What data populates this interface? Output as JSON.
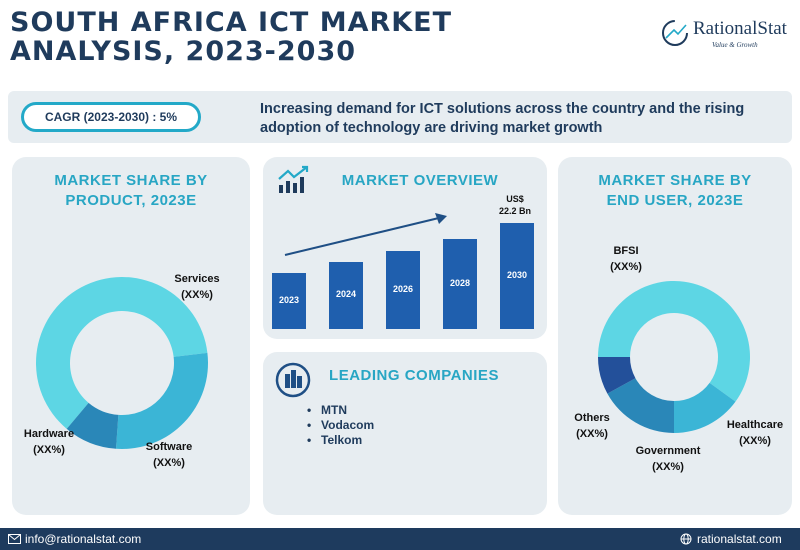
{
  "title": {
    "line1": "SOUTH AFRICA ICT MARKET",
    "line2": "ANALYSIS, 2023-2030"
  },
  "logo": {
    "name": "RationalStat",
    "tagline": "Value & Growth"
  },
  "banner": {
    "cagr": "CAGR (2023-2030) : 5%",
    "text": "Increasing demand for ICT solutions across the country and the rising adoption of technology are driving market growth"
  },
  "product_panel": {
    "title_line1": "MARKET SHARE BY",
    "title_line2": "PRODUCT, 2023E",
    "labels": {
      "services": "Services",
      "software": "Software",
      "hardware": "Hardware",
      "value": "(XX%)"
    }
  },
  "overview_panel": {
    "title": "MARKET OVERVIEW",
    "value_label_line1": "US$",
    "value_label_line2": "22.2 Bn"
  },
  "companies_panel": {
    "title": "LEADING COMPANIES",
    "items": [
      "MTN",
      "Vodacom",
      "Telkom"
    ]
  },
  "enduser_panel": {
    "title_line1": "MARKET SHARE BY",
    "title_line2": "END USER, 2023E",
    "labels": {
      "bfsi": "BFSI",
      "healthcare": "Healthcare",
      "government": "Government",
      "others": "Others",
      "value": "(XX%)"
    }
  },
  "footer": {
    "email": "info@rationalstat.com",
    "website": "rationalstat.com"
  },
  "colors": {
    "navy": "#1f3b5c",
    "teal": "#28a6c4",
    "bar": "#1f5fae",
    "donut_light": "#5dd6e4",
    "donut_mid": "#3bb5d6",
    "donut_dark": "#2a87b8",
    "donut_navy": "#23509a"
  },
  "chart_data": [
    {
      "type": "bar",
      "categories": [
        "2023",
        "2024",
        "2026",
        "2028",
        "2030"
      ],
      "values": [
        null,
        null,
        null,
        null,
        22.2
      ],
      "relative_heights": [
        0.5,
        0.6,
        0.7,
        0.8,
        0.95
      ],
      "unit": "US$ Bn"
    },
    {
      "type": "pie",
      "categories": [
        "Services",
        "Software",
        "Hardware"
      ],
      "values": [
        62,
        28,
        10
      ],
      "value_labels": [
        "(XX%)",
        "(XX%)",
        "(XX%)"
      ]
    },
    {
      "type": "pie",
      "categories": [
        "BFSI",
        "Healthcare",
        "Government",
        "Others"
      ],
      "values": [
        60,
        15,
        17,
        8
      ],
      "value_labels": [
        "(XX%)",
        "(XX%)",
        "(XX%)",
        "(XX%)"
      ]
    }
  ]
}
